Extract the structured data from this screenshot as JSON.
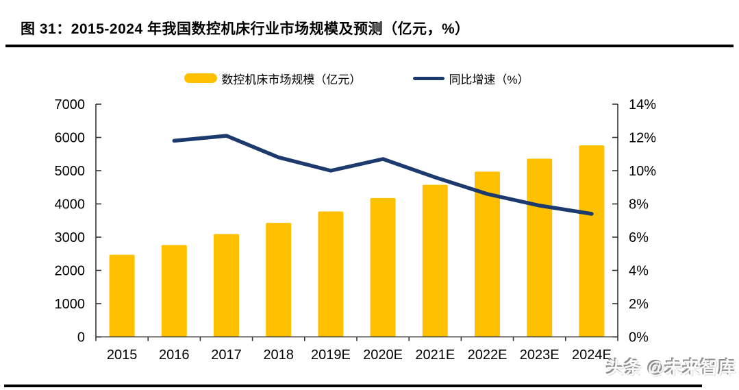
{
  "page": {
    "title": "图 31：2015-2024 年我国数控机床行业市场规模及预测（亿元，%）",
    "watermark": "头条 @未来智库"
  },
  "legend": {
    "items": [
      {
        "label": "数控机床市场规模（亿元）",
        "swatch": "bar-swatch"
      },
      {
        "label": "同比增速（%）",
        "swatch": "line-swatch"
      }
    ]
  },
  "colors": {
    "bar": "#FFC000",
    "line": "#1C3A6E",
    "axis": "#333333",
    "text": "#000000"
  },
  "chart_data": {
    "type": "bar",
    "title": "2015-2024 年我国数控机床行业市场规模及预测（亿元，%）",
    "categories": [
      "2015",
      "2016",
      "2017",
      "2018",
      "2019E",
      "2020E",
      "2021E",
      "2022E",
      "2023E",
      "2024E"
    ],
    "series": [
      {
        "name": "数控机床市场规模（亿元）",
        "type": "bar",
        "axis": "left",
        "color": "#FFC000",
        "values": [
          2471,
          2762,
          3096,
          3431,
          3774,
          4177,
          4576,
          4971,
          5362,
          5760
        ]
      },
      {
        "name": "同比增速（%）",
        "type": "line",
        "axis": "right",
        "color": "#1C3A6E",
        "values": [
          null,
          11.8,
          12.1,
          10.8,
          10.0,
          10.7,
          9.6,
          8.6,
          7.9,
          7.4
        ]
      }
    ],
    "left_axis": {
      "min": 0,
      "max": 7000,
      "ticks": [
        0,
        1000,
        2000,
        3000,
        4000,
        5000,
        6000,
        7000
      ],
      "suffix": ""
    },
    "right_axis": {
      "min": 0,
      "max": 14,
      "ticks": [
        0,
        2,
        4,
        6,
        8,
        10,
        12,
        14
      ],
      "suffix": "%"
    },
    "grid": false,
    "legend_position": "top"
  }
}
